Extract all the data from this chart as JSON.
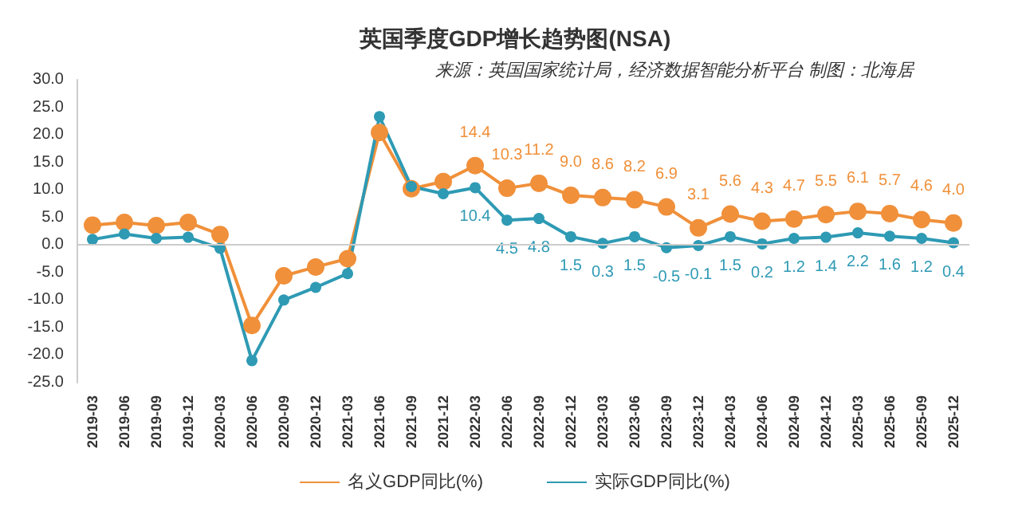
{
  "chart_data": {
    "type": "line",
    "title": "英国季度GDP增长趋势图(NSA)",
    "subtitle": "来源：英国国家统计局，经济数据智能分析平台 制图：北海居",
    "categories": [
      "2019-03",
      "2019-06",
      "2019-09",
      "2019-12",
      "2020-03",
      "2020-06",
      "2020-09",
      "2020-12",
      "2021-03",
      "2021-06",
      "2021-09",
      "2021-12",
      "2022-03",
      "2022-06",
      "2022-09",
      "2022-12",
      "2023-03",
      "2023-06",
      "2023-09",
      "2023-12",
      "2024-03",
      "2024-06",
      "2024-09",
      "2024-12",
      "2025-03",
      "2025-06",
      "2025-09",
      "2025-12"
    ],
    "series": [
      {
        "name": "名义GDP同比(%)",
        "color": "#f0903a",
        "values": [
          3.6,
          4.1,
          3.5,
          4.1,
          1.9,
          -14.6,
          -5.6,
          -4.0,
          -2.5,
          20.4,
          10.2,
          11.5,
          14.4,
          10.3,
          11.2,
          9.0,
          8.6,
          8.2,
          6.9,
          3.1,
          5.6,
          4.3,
          4.7,
          5.5,
          6.1,
          5.7,
          4.6,
          4.0
        ],
        "value_labels": [
          null,
          null,
          null,
          null,
          null,
          null,
          null,
          null,
          null,
          null,
          null,
          null,
          "14.4",
          "10.3",
          "11.2",
          "9.0",
          "8.6",
          "8.2",
          "6.9",
          "3.1",
          "5.6",
          "4.3",
          "4.7",
          "5.5",
          "6.1",
          "5.7",
          "4.6",
          "4.0"
        ]
      },
      {
        "name": "实际GDP同比(%)",
        "color": "#2e9ab4",
        "values": [
          1.0,
          2.0,
          1.2,
          1.4,
          -0.6,
          -21.0,
          -10.0,
          -7.7,
          -5.2,
          23.3,
          10.6,
          9.3,
          10.4,
          4.5,
          4.8,
          1.5,
          0.3,
          1.5,
          -0.5,
          -0.1,
          1.5,
          0.2,
          1.2,
          1.4,
          2.2,
          1.6,
          1.2,
          0.4
        ],
        "value_labels": [
          null,
          null,
          null,
          null,
          null,
          null,
          null,
          null,
          null,
          null,
          null,
          null,
          "10.4",
          "4.5",
          "4.8",
          "1.5",
          "0.3",
          "1.5",
          "-0.5",
          "-0.1",
          "1.5",
          "0.2",
          "1.2",
          "1.4",
          "2.2",
          "1.6",
          "1.2",
          "0.4"
        ]
      }
    ],
    "ylim": [
      -25,
      30
    ],
    "yticks": [
      {
        "value": -25,
        "label": "-25.0"
      },
      {
        "value": -20,
        "label": "-20.0"
      },
      {
        "value": -15,
        "label": "-15.0"
      },
      {
        "value": -10,
        "label": "-10.0"
      },
      {
        "value": -5,
        "label": "-5.0"
      },
      {
        "value": 0,
        "label": "0.0"
      },
      {
        "value": 5,
        "label": "5.0"
      },
      {
        "value": 10,
        "label": "10.0"
      },
      {
        "value": 15,
        "label": "15.0"
      },
      {
        "value": 20,
        "label": "20.0"
      },
      {
        "value": 25,
        "label": "25.0"
      },
      {
        "value": 30,
        "label": "30.0"
      }
    ],
    "ref_lines": [
      {
        "axis": "y",
        "value": 0,
        "color": "#cccccc",
        "line_style": "solid"
      }
    ],
    "grid": false,
    "legend": "bottom",
    "marker": "circle",
    "line_style": "solid"
  }
}
